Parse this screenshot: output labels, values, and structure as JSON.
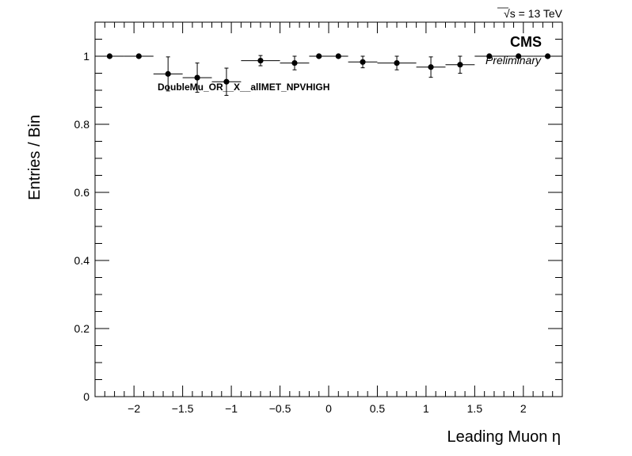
{
  "chart_data": {
    "type": "scatter",
    "xlabel": "Leading Muon η",
    "ylabel": "Entries / Bin",
    "xlim": [
      -2.4,
      2.4
    ],
    "ylim": [
      0,
      1.1
    ],
    "x_ticks": [
      -2,
      -1.5,
      -1,
      -0.5,
      0,
      0.5,
      1,
      1.5,
      2
    ],
    "x_tick_labels": [
      "−2",
      "−1.5",
      "−1",
      "−0.5",
      "0",
      "0.5",
      "1",
      "1.5",
      "2"
    ],
    "y_ticks": [
      0,
      0.2,
      0.4,
      0.6,
      0.8,
      1
    ],
    "y_tick_labels": [
      "0",
      "0.2",
      "0.4",
      "0.6",
      "0.8",
      "1"
    ],
    "grid": false,
    "series": [
      {
        "x": [
          -2.25,
          -1.95,
          -1.65,
          -1.35,
          -1.05,
          -0.7,
          -0.35,
          -0.1,
          0.1,
          0.35,
          0.7,
          1.05,
          1.35,
          1.65,
          1.95,
          2.25
        ],
        "x_low": [
          -2.4,
          -2.1,
          -1.8,
          -1.5,
          -1.2,
          -0.9,
          -0.5,
          -0.2,
          0.0,
          0.2,
          0.5,
          0.9,
          1.2,
          1.5,
          1.8,
          2.1
        ],
        "x_high": [
          -2.1,
          -1.8,
          -1.5,
          -1.2,
          -0.9,
          -0.5,
          -0.2,
          0.0,
          0.2,
          0.5,
          0.9,
          1.2,
          1.5,
          1.8,
          2.1,
          2.4
        ],
        "y": [
          1.0,
          1.0,
          0.948,
          0.937,
          0.925,
          0.987,
          0.98,
          1.0,
          1.0,
          0.983,
          0.98,
          0.968,
          0.975,
          1.0,
          1.0,
          1.0
        ],
        "y_err": [
          0,
          0,
          0.05,
          0.043,
          0.04,
          0.015,
          0.02,
          0,
          0,
          0.017,
          0.02,
          0.03,
          0.025,
          0,
          0,
          0
        ]
      }
    ]
  },
  "labels": {
    "cms": "CMS",
    "preliminary": "Preliminary",
    "energy_sqrt": "√s",
    "energy_value": " = 13 TeV",
    "trigger": "DoubleMu_OR__X__allMET_NPVHIGH"
  },
  "colors": {
    "marker": "#000000",
    "axis": "#000000",
    "background": "#ffffff"
  }
}
